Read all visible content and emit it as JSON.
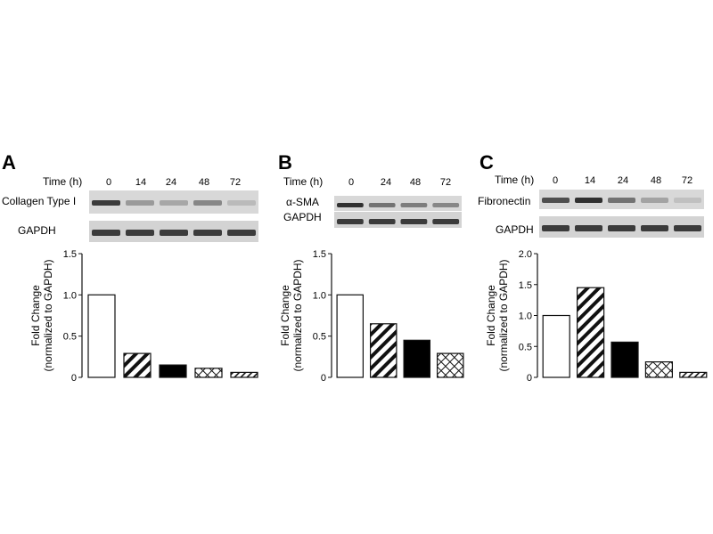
{
  "panels": [
    {
      "letter": "A",
      "time_label": "Time (h)",
      "times": [
        "0",
        "14",
        "24",
        "48",
        "72"
      ],
      "protein": "Collagen Type I",
      "loading": "GAPDH",
      "band_intensity": [
        0.85,
        0.35,
        0.28,
        0.45,
        0.18
      ]
    },
    {
      "letter": "B",
      "time_label": "Time (h)",
      "times": [
        "0",
        "24",
        "48",
        "72"
      ],
      "protein": "α-SMA",
      "loading": "GAPDH",
      "band_intensity": [
        0.9,
        0.55,
        0.5,
        0.45
      ]
    },
    {
      "letter": "C",
      "time_label": "Time (h)",
      "times": [
        "0",
        "14",
        "24",
        "48",
        "72"
      ],
      "protein": "Fibronectin",
      "loading": "GAPDH",
      "band_intensity": [
        0.75,
        0.9,
        0.55,
        0.3,
        0.15
      ]
    }
  ],
  "chart_data": [
    {
      "type": "bar",
      "panel": "A",
      "categories": [
        "0",
        "14",
        "24",
        "48",
        "72"
      ],
      "values": [
        1.0,
        0.29,
        0.15,
        0.11,
        0.06
      ],
      "patterns": [
        "open",
        "diag-wide",
        "solid",
        "cross",
        "diag-fine"
      ],
      "ylabel_line1": "Fold  Change",
      "ylabel_line2": "(normalized to GAPDH)",
      "ylim": [
        0,
        1.5
      ],
      "yticks": [
        "0",
        "0.5",
        "1.0",
        "1.5"
      ],
      "grid": false
    },
    {
      "type": "bar",
      "panel": "B",
      "categories": [
        "0",
        "24",
        "48",
        "72"
      ],
      "values": [
        1.0,
        0.65,
        0.45,
        0.29
      ],
      "patterns": [
        "open",
        "diag-wide",
        "solid",
        "cross"
      ],
      "ylabel_line1": "Fold  Change",
      "ylabel_line2": "(normalized to GAPDH)",
      "ylim": [
        0,
        1.5
      ],
      "yticks": [
        "0",
        "0.5",
        "1.0",
        "1.5"
      ],
      "grid": false
    },
    {
      "type": "bar",
      "panel": "C",
      "categories": [
        "0",
        "14",
        "24",
        "48",
        "72"
      ],
      "values": [
        1.0,
        1.45,
        0.57,
        0.25,
        0.08
      ],
      "patterns": [
        "open",
        "diag-wide",
        "solid",
        "cross",
        "diag-fine"
      ],
      "ylabel_line1": "Fold  Change",
      "ylabel_line2": "(normalized to GAPDH)",
      "ylim": [
        0,
        2.0
      ],
      "yticks": [
        "0",
        "0.5",
        "1.0",
        "1.5",
        "2.0"
      ],
      "grid": false
    }
  ]
}
